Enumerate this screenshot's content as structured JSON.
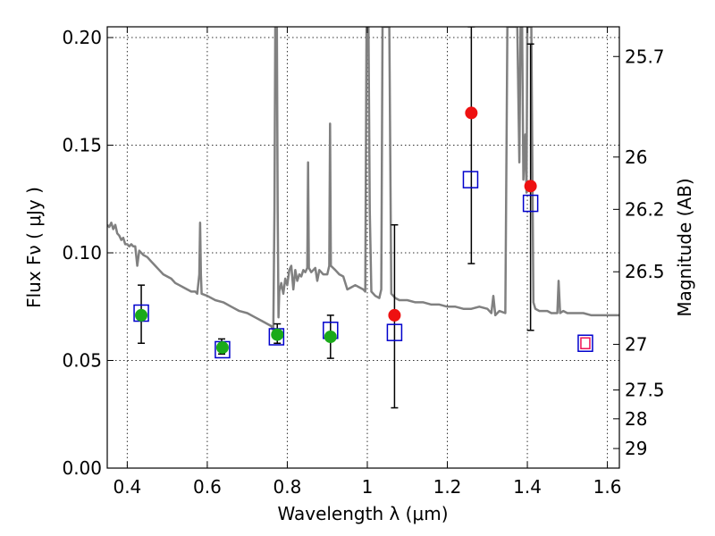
{
  "chart_data": {
    "type": "scatter",
    "title": "",
    "xlabel": "Wavelength  λ (μm)",
    "ylabel": "Flux  Fν  ( μJy )",
    "ylabel_right": "Magnitude (AB)",
    "xlim": [
      0.35,
      1.63
    ],
    "ylim": [
      0.0,
      0.205
    ],
    "grid": true,
    "x_ticks": [
      0.4,
      0.6,
      0.8,
      1.0,
      1.2,
      1.4,
      1.6
    ],
    "x_tick_labels": [
      "0.4",
      "0.6",
      "0.8",
      "1",
      "1.2",
      "1.4",
      "1.6"
    ],
    "y_ticks": [
      0.0,
      0.05,
      0.1,
      0.15,
      0.2
    ],
    "y_tick_labels": [
      "0.00",
      "0.05",
      "0.10",
      "0.15",
      "0.20"
    ],
    "right_ticks": [
      {
        "label": "25.7",
        "flux": 0.1912
      },
      {
        "label": "26",
        "flux": 0.1445
      },
      {
        "label": "26.2",
        "flux": 0.1202
      },
      {
        "label": "26.5",
        "flux": 0.0912
      },
      {
        "label": "27",
        "flux": 0.0575
      },
      {
        "label": "27.5",
        "flux": 0.0363
      },
      {
        "label": "28",
        "flux": 0.0229
      },
      {
        "label": "29",
        "flux": 0.0091
      }
    ],
    "colors": {
      "spectrum": "#808080",
      "green_points": "#1aaa1a",
      "red_points": "#ee1111",
      "model_squares": "#0000cc",
      "red_square": "#ee1155",
      "errorbar": "#000000"
    },
    "series": [
      {
        "kind": "spectrum",
        "points": [
          [
            0.35,
            0.113
          ],
          [
            0.355,
            0.112
          ],
          [
            0.36,
            0.114
          ],
          [
            0.365,
            0.111
          ],
          [
            0.37,
            0.113
          ],
          [
            0.375,
            0.109
          ],
          [
            0.38,
            0.108
          ],
          [
            0.385,
            0.106
          ],
          [
            0.39,
            0.107
          ],
          [
            0.395,
            0.104
          ],
          [
            0.4,
            0.104
          ],
          [
            0.405,
            0.103
          ],
          [
            0.41,
            0.104
          ],
          [
            0.415,
            0.103
          ],
          [
            0.42,
            0.103
          ],
          [
            0.425,
            0.094
          ],
          [
            0.43,
            0.101
          ],
          [
            0.44,
            0.099
          ],
          [
            0.45,
            0.098
          ],
          [
            0.46,
            0.096
          ],
          [
            0.47,
            0.094
          ],
          [
            0.48,
            0.092
          ],
          [
            0.49,
            0.09
          ],
          [
            0.5,
            0.089
          ],
          [
            0.51,
            0.088
          ],
          [
            0.52,
            0.086
          ],
          [
            0.53,
            0.085
          ],
          [
            0.54,
            0.084
          ],
          [
            0.55,
            0.083
          ],
          [
            0.56,
            0.082
          ],
          [
            0.57,
            0.082
          ],
          [
            0.575,
            0.081
          ],
          [
            0.58,
            0.09
          ],
          [
            0.582,
            0.114
          ],
          [
            0.584,
            0.09
          ],
          [
            0.586,
            0.081
          ],
          [
            0.6,
            0.08
          ],
          [
            0.62,
            0.078
          ],
          [
            0.64,
            0.077
          ],
          [
            0.66,
            0.075
          ],
          [
            0.68,
            0.073
          ],
          [
            0.7,
            0.072
          ],
          [
            0.72,
            0.07
          ],
          [
            0.74,
            0.068
          ],
          [
            0.76,
            0.066
          ],
          [
            0.765,
            0.064
          ],
          [
            0.768,
            0.12
          ],
          [
            0.77,
            0.205
          ],
          [
            0.774,
            0.205
          ],
          [
            0.776,
            0.12
          ],
          [
            0.778,
            0.07
          ],
          [
            0.78,
            0.082
          ],
          [
            0.785,
            0.086
          ],
          [
            0.79,
            0.081
          ],
          [
            0.795,
            0.088
          ],
          [
            0.8,
            0.085
          ],
          [
            0.805,
            0.092
          ],
          [
            0.81,
            0.094
          ],
          [
            0.815,
            0.083
          ],
          [
            0.82,
            0.092
          ],
          [
            0.825,
            0.087
          ],
          [
            0.83,
            0.09
          ],
          [
            0.835,
            0.089
          ],
          [
            0.84,
            0.092
          ],
          [
            0.845,
            0.091
          ],
          [
            0.85,
            0.093
          ],
          [
            0.852,
            0.142
          ],
          [
            0.854,
            0.093
          ],
          [
            0.86,
            0.091
          ],
          [
            0.87,
            0.093
          ],
          [
            0.875,
            0.087
          ],
          [
            0.88,
            0.092
          ],
          [
            0.89,
            0.09
          ],
          [
            0.9,
            0.09
          ],
          [
            0.905,
            0.094
          ],
          [
            0.907,
            0.16
          ],
          [
            0.909,
            0.094
          ],
          [
            0.92,
            0.092
          ],
          [
            0.93,
            0.09
          ],
          [
            0.94,
            0.089
          ],
          [
            0.95,
            0.083
          ],
          [
            0.96,
            0.084
          ],
          [
            0.97,
            0.085
          ],
          [
            0.98,
            0.084
          ],
          [
            0.99,
            0.083
          ],
          [
            0.995,
            0.082
          ],
          [
            0.998,
            0.205
          ],
          [
            1.0,
            0.205
          ],
          [
            1.003,
            0.205
          ],
          [
            1.006,
            0.12
          ],
          [
            1.01,
            0.082
          ],
          [
            1.02,
            0.08
          ],
          [
            1.03,
            0.079
          ],
          [
            1.035,
            0.083
          ],
          [
            1.038,
            0.205
          ],
          [
            1.05,
            0.205
          ],
          [
            1.055,
            0.205
          ],
          [
            1.06,
            0.081
          ],
          [
            1.07,
            0.079
          ],
          [
            1.08,
            0.078
          ],
          [
            1.1,
            0.078
          ],
          [
            1.12,
            0.077
          ],
          [
            1.14,
            0.077
          ],
          [
            1.16,
            0.076
          ],
          [
            1.18,
            0.076
          ],
          [
            1.2,
            0.075
          ],
          [
            1.22,
            0.075
          ],
          [
            1.24,
            0.074
          ],
          [
            1.26,
            0.074
          ],
          [
            1.28,
            0.075
          ],
          [
            1.3,
            0.074
          ],
          [
            1.31,
            0.072
          ],
          [
            1.315,
            0.08
          ],
          [
            1.32,
            0.071
          ],
          [
            1.33,
            0.073
          ],
          [
            1.345,
            0.072
          ],
          [
            1.35,
            0.205
          ],
          [
            1.355,
            0.205
          ],
          [
            1.36,
            0.205
          ],
          [
            1.365,
            0.205
          ],
          [
            1.37,
            0.205
          ],
          [
            1.375,
            0.205
          ],
          [
            1.38,
            0.142
          ],
          [
            1.383,
            0.205
          ],
          [
            1.387,
            0.205
          ],
          [
            1.39,
            0.134
          ],
          [
            1.395,
            0.155
          ],
          [
            1.398,
            0.128
          ],
          [
            1.4,
            0.205
          ],
          [
            1.41,
            0.205
          ],
          [
            1.415,
            0.077
          ],
          [
            1.42,
            0.074
          ],
          [
            1.43,
            0.073
          ],
          [
            1.44,
            0.073
          ],
          [
            1.45,
            0.073
          ],
          [
            1.46,
            0.072
          ],
          [
            1.47,
            0.072
          ],
          [
            1.475,
            0.072
          ],
          [
            1.478,
            0.087
          ],
          [
            1.482,
            0.072
          ],
          [
            1.49,
            0.073
          ],
          [
            1.5,
            0.072
          ],
          [
            1.52,
            0.072
          ],
          [
            1.54,
            0.072
          ],
          [
            1.56,
            0.071
          ],
          [
            1.58,
            0.071
          ],
          [
            1.6,
            0.071
          ],
          [
            1.62,
            0.071
          ],
          [
            1.63,
            0.071
          ]
        ]
      },
      {
        "kind": "errorbars",
        "items": [
          {
            "x": 0.435,
            "lo": 0.058,
            "hi": 0.085
          },
          {
            "x": 0.636,
            "lo": 0.053,
            "hi": 0.06
          },
          {
            "x": 0.775,
            "lo": 0.058,
            "hi": 0.067
          },
          {
            "x": 0.908,
            "lo": 0.051,
            "hi": 0.071
          },
          {
            "x": 1.068,
            "lo": 0.028,
            "hi": 0.113
          },
          {
            "x": 1.26,
            "lo": 0.095,
            "hi": 0.205
          },
          {
            "x": 1.408,
            "lo": 0.064,
            "hi": 0.197
          }
        ]
      },
      {
        "kind": "model_squares",
        "points": [
          [
            0.435,
            0.072
          ],
          [
            0.638,
            0.055
          ],
          [
            0.773,
            0.061
          ],
          [
            0.908,
            0.064
          ],
          [
            1.068,
            0.063
          ],
          [
            1.258,
            0.134
          ],
          [
            1.408,
            0.123
          ]
        ]
      },
      {
        "kind": "red_model_square",
        "points": [
          [
            1.545,
            0.058
          ]
        ]
      },
      {
        "kind": "green_observed",
        "points": [
          [
            0.435,
            0.071
          ],
          [
            0.638,
            0.056
          ],
          [
            0.775,
            0.062
          ],
          [
            0.908,
            0.061
          ]
        ]
      },
      {
        "kind": "red_observed",
        "points": [
          [
            1.068,
            0.071
          ],
          [
            1.26,
            0.165
          ],
          [
            1.408,
            0.131
          ]
        ]
      }
    ]
  }
}
